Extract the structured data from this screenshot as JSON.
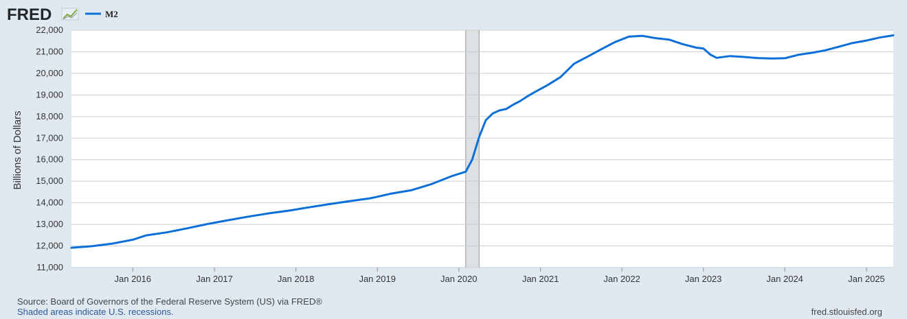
{
  "header": {
    "logo_text": "FRED",
    "logo_icon": "trend-line-icon"
  },
  "colors": {
    "series": "#0c6fd9",
    "recession": "#dde1e4",
    "plot_bg": "#ffffff",
    "page_bg": "#e1e9f0",
    "grid": "#c9ced2"
  },
  "chart_data": {
    "type": "line",
    "title": "",
    "xlabel": "",
    "ylabel": "Billions of Dollars",
    "grid": true,
    "legend": "top-left",
    "ylim": [
      11000,
      22000
    ],
    "xlim": [
      "2015-04-01",
      "2025-05-01"
    ],
    "y_ticks": [
      {
        "value": 11000,
        "label": "11,000"
      },
      {
        "value": 12000,
        "label": "12,000"
      },
      {
        "value": 13000,
        "label": "13,000"
      },
      {
        "value": 14000,
        "label": "14,000"
      },
      {
        "value": 15000,
        "label": "15,000"
      },
      {
        "value": 16000,
        "label": "16,000"
      },
      {
        "value": 17000,
        "label": "17,000"
      },
      {
        "value": 18000,
        "label": "18,000"
      },
      {
        "value": 19000,
        "label": "19,000"
      },
      {
        "value": 20000,
        "label": "20,000"
      },
      {
        "value": 21000,
        "label": "21,000"
      },
      {
        "value": 22000,
        "label": "22,000"
      }
    ],
    "x_ticks": [
      {
        "date": "2016-01-01",
        "label": "Jan 2016"
      },
      {
        "date": "2017-01-01",
        "label": "Jan 2017"
      },
      {
        "date": "2018-01-01",
        "label": "Jan 2018"
      },
      {
        "date": "2019-01-01",
        "label": "Jan 2019"
      },
      {
        "date": "2020-01-01",
        "label": "Jan 2020"
      },
      {
        "date": "2021-01-01",
        "label": "Jan 2021"
      },
      {
        "date": "2022-01-01",
        "label": "Jan 2022"
      },
      {
        "date": "2023-01-01",
        "label": "Jan 2023"
      },
      {
        "date": "2024-01-01",
        "label": "Jan 2024"
      },
      {
        "date": "2025-01-01",
        "label": "Jan 2025"
      }
    ],
    "recessions": [
      {
        "start": "2020-02-01",
        "end": "2020-04-01"
      }
    ],
    "series": [
      {
        "name": "M2",
        "color": "#0c6fd9",
        "points": [
          [
            "2015-04-01",
            11920
          ],
          [
            "2015-07-01",
            11990
          ],
          [
            "2015-10-01",
            12110
          ],
          [
            "2016-01-01",
            12290
          ],
          [
            "2016-03-01",
            12490
          ],
          [
            "2016-06-01",
            12630
          ],
          [
            "2016-09-01",
            12820
          ],
          [
            "2016-12-01",
            13020
          ],
          [
            "2017-03-01",
            13190
          ],
          [
            "2017-06-01",
            13360
          ],
          [
            "2017-09-01",
            13510
          ],
          [
            "2017-12-01",
            13640
          ],
          [
            "2018-03-01",
            13790
          ],
          [
            "2018-06-01",
            13940
          ],
          [
            "2018-09-01",
            14080
          ],
          [
            "2018-12-01",
            14210
          ],
          [
            "2019-01-01",
            14280
          ],
          [
            "2019-03-01",
            14420
          ],
          [
            "2019-06-01",
            14580
          ],
          [
            "2019-09-01",
            14870
          ],
          [
            "2019-12-01",
            15240
          ],
          [
            "2020-02-01",
            15440
          ],
          [
            "2020-03-01",
            16000
          ],
          [
            "2020-04-01",
            17050
          ],
          [
            "2020-05-01",
            17830
          ],
          [
            "2020-06-01",
            18140
          ],
          [
            "2020-07-01",
            18280
          ],
          [
            "2020-08-01",
            18350
          ],
          [
            "2020-09-01",
            18550
          ],
          [
            "2020-10-01",
            18710
          ],
          [
            "2020-11-01",
            18920
          ],
          [
            "2020-12-01",
            19100
          ],
          [
            "2021-02-01",
            19450
          ],
          [
            "2021-04-01",
            19830
          ],
          [
            "2021-06-01",
            20450
          ],
          [
            "2021-08-01",
            20780
          ],
          [
            "2021-10-01",
            21120
          ],
          [
            "2021-12-01",
            21450
          ],
          [
            "2022-02-01",
            21700
          ],
          [
            "2022-04-01",
            21740
          ],
          [
            "2022-06-01",
            21630
          ],
          [
            "2022-08-01",
            21560
          ],
          [
            "2022-10-01",
            21350
          ],
          [
            "2022-12-01",
            21190
          ],
          [
            "2023-01-01",
            21150
          ],
          [
            "2023-02-01",
            20870
          ],
          [
            "2023-03-01",
            20720
          ],
          [
            "2023-05-01",
            20800
          ],
          [
            "2023-07-01",
            20760
          ],
          [
            "2023-09-01",
            20710
          ],
          [
            "2023-11-01",
            20690
          ],
          [
            "2024-01-01",
            20700
          ],
          [
            "2024-03-01",
            20860
          ],
          [
            "2024-05-01",
            20950
          ],
          [
            "2024-07-01",
            21070
          ],
          [
            "2024-09-01",
            21240
          ],
          [
            "2024-11-01",
            21410
          ],
          [
            "2025-01-01",
            21520
          ],
          [
            "2025-03-01",
            21660
          ],
          [
            "2025-05-01",
            21760
          ]
        ]
      }
    ]
  },
  "footer": {
    "source": "Source: Board of Governors of the Federal Reserve System (US) via FRED®",
    "recession_note": "Shaded areas indicate U.S. recessions.",
    "url": "fred.stlouisfed.org"
  }
}
